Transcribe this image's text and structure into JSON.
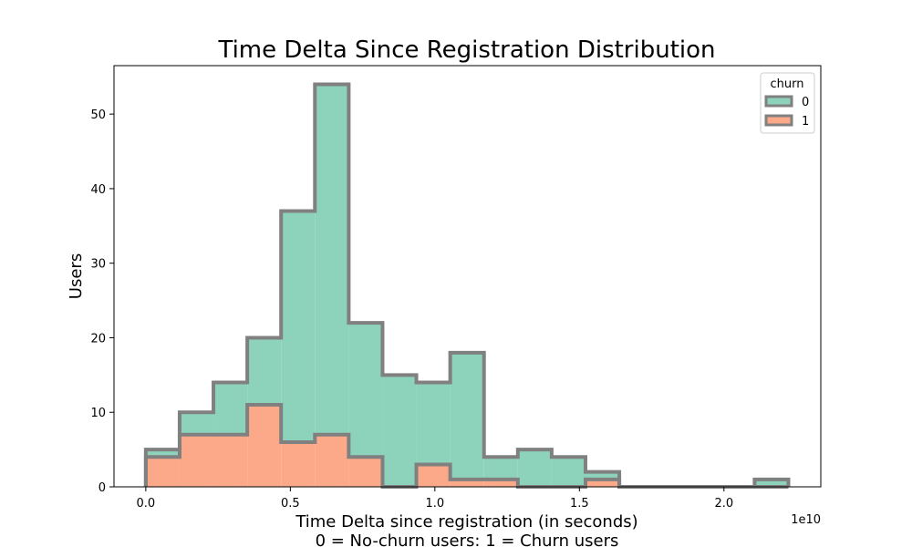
{
  "chart_data": {
    "type": "histogram",
    "title": "Time Delta Since Registration Distribution",
    "xlabel_line1": "Time Delta since registration (in seconds)",
    "xlabel_line2": "0 = No-churn users: 1 = Churn users",
    "ylabel": "Users",
    "x_offset_label": "1e10",
    "x_scale": 10000000000,
    "x_ticks": [
      0.0,
      0.5,
      1.0,
      1.5,
      2.0
    ],
    "x_tick_labels": [
      "0.0",
      "0.5",
      "1.0",
      "1.5",
      "2.0"
    ],
    "y_ticks": [
      0,
      10,
      20,
      30,
      40,
      50
    ],
    "y_tick_labels": [
      "0",
      "10",
      "20",
      "30",
      "40",
      "50"
    ],
    "xlim": [
      -0.11,
      2.335
    ],
    "ylim": [
      0,
      56.5
    ],
    "bin_edges": [
      0.0,
      0.117,
      0.234,
      0.351,
      0.468,
      0.585,
      0.702,
      0.819,
      0.936,
      1.053,
      1.17,
      1.287,
      1.404,
      1.521,
      1.638,
      1.755,
      1.872,
      1.989,
      2.106,
      2.223
    ],
    "stacked": true,
    "series": [
      {
        "name": "1",
        "color": "#fca98a",
        "counts": [
          4,
          7,
          7,
          11,
          6,
          7,
          4,
          0,
          3,
          1,
          1,
          0,
          0,
          1,
          0,
          0,
          0,
          0,
          0
        ]
      },
      {
        "name": "0",
        "color": "#8dd3bb",
        "counts": [
          1,
          3,
          7,
          9,
          31,
          47,
          18,
          15,
          11,
          17,
          3,
          5,
          4,
          1,
          0,
          0,
          0,
          0,
          1
        ]
      }
    ],
    "edge_color": "#808080",
    "legend": {
      "title": "churn",
      "placement": "top-right",
      "entries": [
        "0",
        "1"
      ]
    },
    "grid": false
  }
}
